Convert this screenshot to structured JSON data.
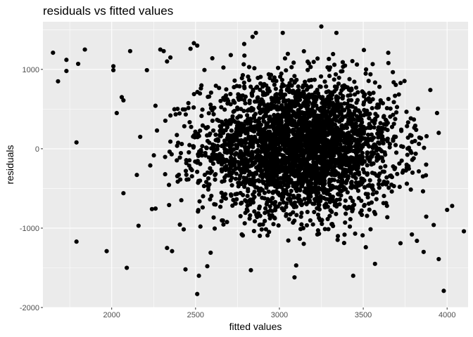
{
  "chart_data": {
    "type": "scatter",
    "title": "residuals vs fitted values",
    "xlabel": "fitted values",
    "ylabel": "residuals",
    "xlim": [
      1590,
      4125
    ],
    "ylim": [
      -2000,
      1600
    ],
    "x_ticks": [
      2000,
      2500,
      3000,
      3500,
      4000
    ],
    "y_ticks": [
      -2000,
      -1000,
      0,
      1000
    ],
    "x_tick_labels": [
      "2000",
      "2500",
      "3000",
      "3500",
      "4000"
    ],
    "y_tick_labels": [
      "-2000",
      "-1000",
      "0",
      "1000"
    ],
    "grid": true,
    "panel_color": "#ebebeb",
    "grid_color": "#ffffff",
    "point_color": "#000000",
    "outlier_points": [
      {
        "x": 1650,
        "y": 1210
      },
      {
        "x": 1680,
        "y": 850
      },
      {
        "x": 1730,
        "y": 980
      },
      {
        "x": 1730,
        "y": 1120
      },
      {
        "x": 1790,
        "y": 80
      },
      {
        "x": 1790,
        "y": -1170
      },
      {
        "x": 1800,
        "y": 1070
      },
      {
        "x": 1840,
        "y": 1250
      },
      {
        "x": 1970,
        "y": -1290
      },
      {
        "x": 2010,
        "y": 990
      },
      {
        "x": 2010,
        "y": 1040
      },
      {
        "x": 2030,
        "y": 450
      },
      {
        "x": 2060,
        "y": 650
      },
      {
        "x": 2070,
        "y": 610
      },
      {
        "x": 2070,
        "y": -560
      },
      {
        "x": 2090,
        "y": -1500
      },
      {
        "x": 2110,
        "y": 1230
      },
      {
        "x": 2150,
        "y": -330
      },
      {
        "x": 2160,
        "y": -970
      },
      {
        "x": 2170,
        "y": 150
      },
      {
        "x": 2210,
        "y": 990
      },
      {
        "x": 2230,
        "y": -210
      },
      {
        "x": 2240,
        "y": -760
      },
      {
        "x": 2270,
        "y": 230
      },
      {
        "x": 2290,
        "y": 1250
      },
      {
        "x": 2310,
        "y": 1230
      },
      {
        "x": 2330,
        "y": 1100
      },
      {
        "x": 2350,
        "y": 1150
      },
      {
        "x": 2330,
        "y": -1250
      },
      {
        "x": 2360,
        "y": -1290
      },
      {
        "x": 2440,
        "y": -1520
      },
      {
        "x": 2470,
        "y": 1260
      },
      {
        "x": 2490,
        "y": 1330
      },
      {
        "x": 2510,
        "y": 1300
      },
      {
        "x": 2510,
        "y": -1830
      },
      {
        "x": 2520,
        "y": -1600
      },
      {
        "x": 2570,
        "y": -1480
      },
      {
        "x": 2590,
        "y": -1310
      },
      {
        "x": 2600,
        "y": 1140
      },
      {
        "x": 2710,
        "y": 1180
      },
      {
        "x": 2790,
        "y": 1320
      },
      {
        "x": 2830,
        "y": -1530
      },
      {
        "x": 2840,
        "y": 1410
      },
      {
        "x": 2860,
        "y": 1460
      },
      {
        "x": 3020,
        "y": 1460
      },
      {
        "x": 3090,
        "y": -1620
      },
      {
        "x": 3100,
        "y": -1470
      },
      {
        "x": 3250,
        "y": 1540
      },
      {
        "x": 3340,
        "y": 1460
      },
      {
        "x": 3440,
        "y": -1600
      },
      {
        "x": 3570,
        "y": -1450
      },
      {
        "x": 3650,
        "y": 1080
      },
      {
        "x": 3860,
        "y": -1300
      },
      {
        "x": 3900,
        "y": 740
      },
      {
        "x": 3920,
        "y": -960
      },
      {
        "x": 3940,
        "y": 450
      },
      {
        "x": 3950,
        "y": 200
      },
      {
        "x": 3950,
        "y": -1390
      },
      {
        "x": 3980,
        "y": -1790
      },
      {
        "x": 4000,
        "y": -770
      },
      {
        "x": 4030,
        "y": -720
      },
      {
        "x": 4100,
        "y": -1040
      },
      {
        "x": 3810,
        "y": 290
      },
      {
        "x": 3820,
        "y": -1160
      },
      {
        "x": 3790,
        "y": -1080
      },
      {
        "x": 3760,
        "y": -440
      }
    ],
    "bulk_distribution": {
      "count": 3400,
      "x_mean": 3120,
      "x_sd": 290,
      "x_range": [
        2250,
        3900
      ],
      "y_mean": 20,
      "y_sd": 420,
      "y_range": [
        -1250,
        1250
      ]
    }
  }
}
